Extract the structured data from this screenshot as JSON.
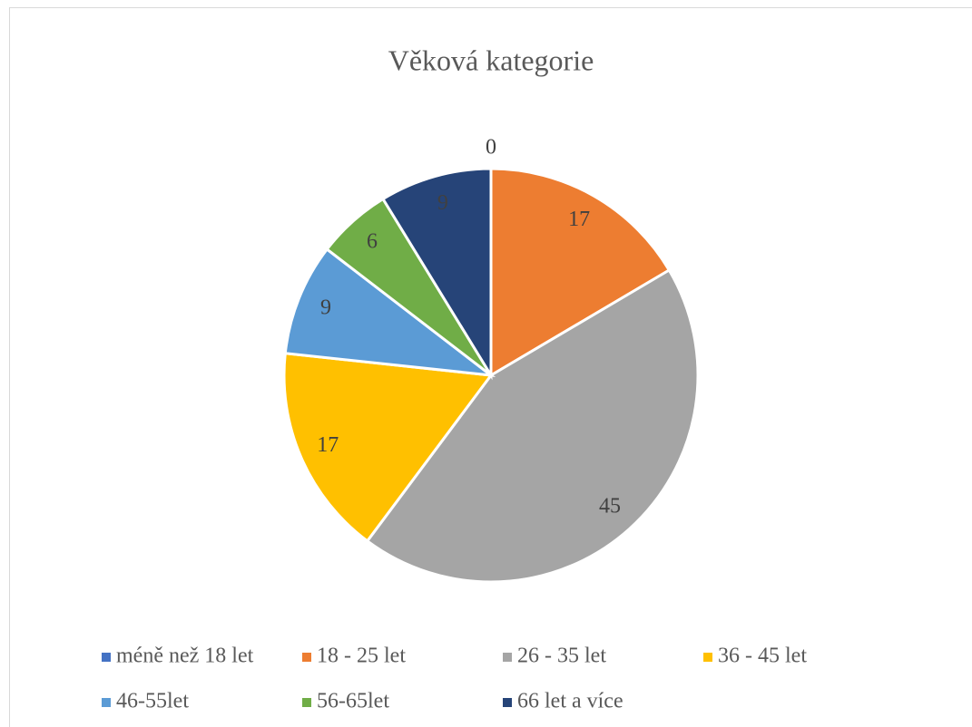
{
  "chart_data": {
    "type": "pie",
    "title": "Věková kategorie",
    "categories": [
      "méně než 18 let",
      "18 - 25 let",
      "26 - 35 let",
      "36 - 45 let",
      "46-55let",
      "56-65let",
      "66 let a více"
    ],
    "values": [
      0,
      17,
      45,
      17,
      9,
      6,
      9
    ],
    "colors": [
      "#4472c4",
      "#ed7d31",
      "#a5a5a5",
      "#ffc000",
      "#5b9bd5",
      "#70ad47",
      "#264478"
    ],
    "legend": "bottom"
  }
}
